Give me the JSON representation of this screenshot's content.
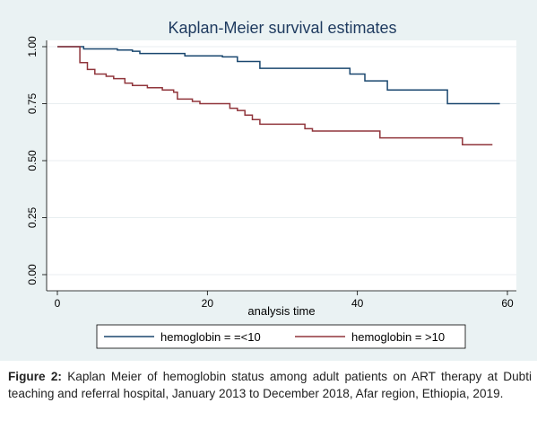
{
  "caption": {
    "label": "Figure 2:",
    "text": " Kaplan Meier of hemoglobin status among adult patients on ART therapy at Dubti teaching and referral hospital, January 2013 to December 2018, Afar region, Ethiopia, 2019."
  },
  "chart_data": {
    "type": "line",
    "title": "Kaplan-Meier survival estimates",
    "xlabel": "analysis time",
    "ylabel": "",
    "xlim": [
      0,
      60
    ],
    "ylim": [
      0,
      1
    ],
    "x_ticks": [
      0,
      20,
      40,
      60
    ],
    "y_ticks": [
      0,
      0.25,
      0.5,
      0.75,
      1
    ],
    "x_tick_labels": [
      "0",
      "20",
      "40",
      "60"
    ],
    "y_tick_labels": [
      "0.00",
      "0.25",
      "0.50",
      "0.75",
      "1.00"
    ],
    "grid": "horizontal",
    "legend_position": "bottom",
    "step": true,
    "series": [
      {
        "name": "hemoglobin = =<10",
        "color": "#1a476f",
        "points": [
          [
            0,
            1.0
          ],
          [
            3.5,
            1.0
          ],
          [
            3.5,
            0.99
          ],
          [
            8,
            0.99
          ],
          [
            8,
            0.985
          ],
          [
            10,
            0.985
          ],
          [
            10,
            0.98
          ],
          [
            11,
            0.98
          ],
          [
            11,
            0.97
          ],
          [
            17,
            0.97
          ],
          [
            17,
            0.96
          ],
          [
            22,
            0.96
          ],
          [
            22,
            0.955
          ],
          [
            24,
            0.955
          ],
          [
            24,
            0.935
          ],
          [
            27,
            0.935
          ],
          [
            27,
            0.905
          ],
          [
            39,
            0.905
          ],
          [
            39,
            0.88
          ],
          [
            41,
            0.88
          ],
          [
            41,
            0.85
          ],
          [
            44,
            0.85
          ],
          [
            44,
            0.81
          ],
          [
            52,
            0.81
          ],
          [
            52,
            0.75
          ],
          [
            59,
            0.75
          ]
        ]
      },
      {
        "name": "hemoglobin = >10",
        "color": "#90353b",
        "points": [
          [
            0,
            1.0
          ],
          [
            3,
            1.0
          ],
          [
            3,
            0.93
          ],
          [
            4,
            0.93
          ],
          [
            4,
            0.9
          ],
          [
            5,
            0.9
          ],
          [
            5,
            0.88
          ],
          [
            6.5,
            0.88
          ],
          [
            6.5,
            0.87
          ],
          [
            7.5,
            0.87
          ],
          [
            7.5,
            0.86
          ],
          [
            9,
            0.86
          ],
          [
            9,
            0.84
          ],
          [
            10,
            0.84
          ],
          [
            10,
            0.83
          ],
          [
            12,
            0.83
          ],
          [
            12,
            0.82
          ],
          [
            14,
            0.82
          ],
          [
            14,
            0.81
          ],
          [
            15.5,
            0.81
          ],
          [
            15.5,
            0.8
          ],
          [
            16,
            0.8
          ],
          [
            16,
            0.77
          ],
          [
            18,
            0.77
          ],
          [
            18,
            0.76
          ],
          [
            19,
            0.76
          ],
          [
            19,
            0.75
          ],
          [
            23,
            0.75
          ],
          [
            23,
            0.73
          ],
          [
            24,
            0.73
          ],
          [
            24,
            0.72
          ],
          [
            25,
            0.72
          ],
          [
            25,
            0.7
          ],
          [
            26,
            0.7
          ],
          [
            26,
            0.68
          ],
          [
            27,
            0.68
          ],
          [
            27,
            0.66
          ],
          [
            33,
            0.66
          ],
          [
            33,
            0.64
          ],
          [
            34,
            0.64
          ],
          [
            34,
            0.63
          ],
          [
            43,
            0.63
          ],
          [
            43,
            0.6
          ],
          [
            54,
            0.6
          ],
          [
            54,
            0.57
          ],
          [
            58,
            0.57
          ]
        ]
      }
    ]
  }
}
